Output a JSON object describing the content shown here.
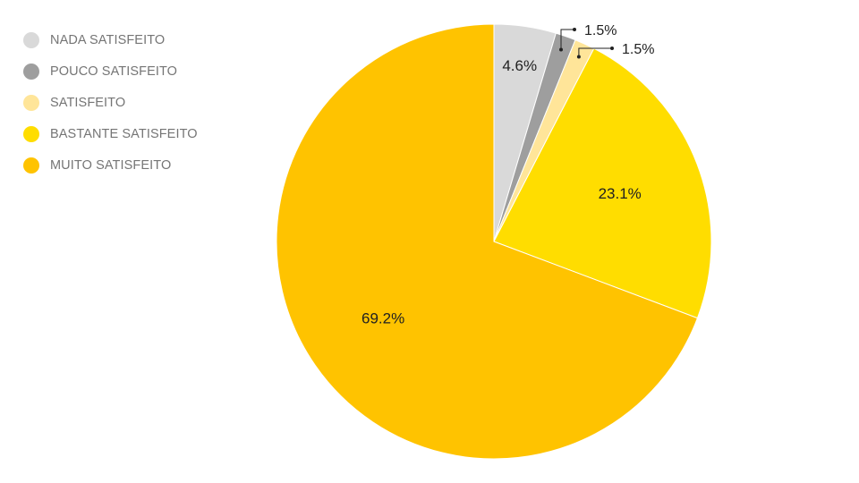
{
  "chart_data": {
    "type": "pie",
    "title": "",
    "legend_position": "top-left",
    "slices": [
      {
        "name": "NADA SATISFEITO",
        "value": 4.6,
        "label": "4.6%",
        "color": "#d9d9d9"
      },
      {
        "name": "POUCO SATISFEITO",
        "value": 1.5,
        "label": "1.5%",
        "color": "#9e9e9e"
      },
      {
        "name": "SATISFEITO",
        "value": 1.5,
        "label": "1.5%",
        "color": "#ffe599"
      },
      {
        "name": "BASTANTE SATISFEITO",
        "value": 23.1,
        "label": "23.1%",
        "color": "#ffdd00"
      },
      {
        "name": "MUITO SATISFEITO",
        "value": 69.2,
        "label": "69.2%",
        "color": "#ffc300"
      }
    ]
  }
}
